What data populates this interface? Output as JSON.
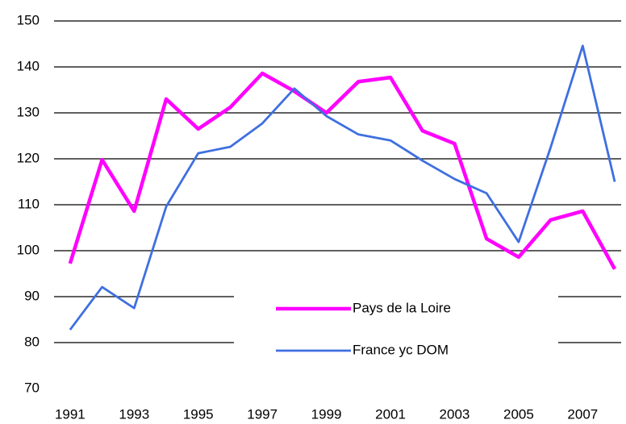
{
  "chart_data": {
    "type": "line",
    "x": [
      1991,
      1992,
      1993,
      1994,
      1995,
      1996,
      1997,
      1998,
      1999,
      2000,
      2001,
      2002,
      2003,
      2004,
      2005,
      2006,
      2007,
      2008
    ],
    "series": [
      {
        "name": "Pays de la Loire",
        "color": "#ff00ff",
        "values": [
          97.2,
          119.8,
          108.6,
          133,
          126.5,
          131.2,
          138.6,
          134.7,
          130,
          136.8,
          137.7,
          126.1,
          123.3,
          102.6,
          98.6,
          106.7,
          108.6,
          96
        ]
      },
      {
        "name": "France yc DOM",
        "color": "#3f6fe0",
        "values": [
          82.8,
          92.1,
          87.5,
          109.6,
          121.2,
          122.6,
          127.7,
          135.3,
          129.3,
          125.3,
          124,
          119.6,
          115.6,
          112.5,
          101.9,
          122.5,
          144.6,
          115
        ]
      }
    ],
    "xlim": [
      1990.5,
      2008.2
    ],
    "xticks": [
      1991,
      1993,
      1995,
      1997,
      1999,
      2001,
      2003,
      2005,
      2007
    ],
    "ylim": [
      70,
      150
    ],
    "yticks": [
      70,
      80,
      90,
      100,
      110,
      120,
      130,
      140,
      150
    ],
    "grid": true,
    "legend": "lower right"
  }
}
